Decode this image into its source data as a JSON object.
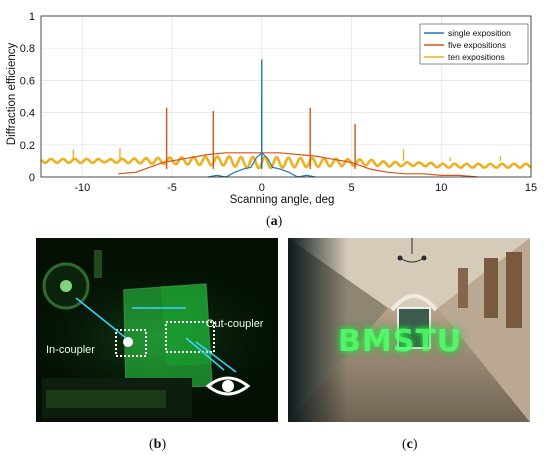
{
  "chart_data": {
    "type": "line",
    "xlabel": "Scanning angle, deg",
    "ylabel": "Diffraction efficiency",
    "xlim": [
      -12.3,
      15
    ],
    "ylim": [
      0,
      1
    ],
    "xticks": [
      "-10",
      "-5",
      "0",
      "5",
      "10",
      "15"
    ],
    "xtick_values": [
      -10,
      -5,
      0,
      5,
      10,
      15
    ],
    "yticks": [
      "0",
      "0.2",
      "0.4",
      "0.6",
      "0.8",
      "1"
    ],
    "ytick_values": [
      0,
      0.2,
      0.4,
      0.6,
      0.8,
      1
    ],
    "grid": true,
    "legend_position": "top-right",
    "series": [
      {
        "name": "single exposition",
        "color": "#1f77b4",
        "peaks": [
          {
            "x": 0,
            "y": 0.73
          }
        ],
        "x": [
          -3,
          -2.5,
          -2,
          -1.5,
          -1,
          -0.6,
          -0.3,
          0,
          0.3,
          0.6,
          1,
          1.5,
          2,
          2.5,
          3
        ],
        "y": [
          0.0,
          0.01,
          0.0,
          0.03,
          0.05,
          0.06,
          0.12,
          0.15,
          0.12,
          0.06,
          0.05,
          0.03,
          0.0,
          0.01,
          0.0
        ]
      },
      {
        "name": "five expositions",
        "color": "#d95319",
        "peaks": [
          {
            "x": -5.3,
            "y": 0.43
          },
          {
            "x": -2.7,
            "y": 0.41
          },
          {
            "x": 0,
            "y": 0.47
          },
          {
            "x": 2.7,
            "y": 0.43
          },
          {
            "x": 5.2,
            "y": 0.33
          }
        ],
        "x": [
          -8,
          -7,
          -6.5,
          -6,
          -5.5,
          -5,
          -4.5,
          -4,
          -3.5,
          -3,
          -2,
          -1,
          0,
          1,
          2,
          3,
          3.5,
          4,
          4.5,
          5,
          5.5,
          6,
          6.5,
          7,
          8,
          9,
          10,
          11,
          12
        ],
        "y": [
          0.02,
          0.03,
          0.05,
          0.07,
          0.09,
          0.1,
          0.11,
          0.12,
          0.13,
          0.14,
          0.15,
          0.15,
          0.15,
          0.15,
          0.14,
          0.13,
          0.12,
          0.11,
          0.1,
          0.09,
          0.07,
          0.05,
          0.04,
          0.03,
          0.02,
          0.02,
          0.01,
          0.01,
          0.0
        ]
      },
      {
        "name": "ten expositions",
        "color": "#edb120",
        "peaks": [
          {
            "x": -10.5,
            "y": 0.17
          },
          {
            "x": -7.9,
            "y": 0.18
          },
          {
            "x": 7.9,
            "y": 0.17
          },
          {
            "x": 10.5,
            "y": 0.12
          },
          {
            "x": 13.3,
            "y": 0.13
          }
        ],
        "x": [
          -12.3,
          -11,
          -10,
          -9,
          -8,
          -7,
          -6,
          -5,
          -4,
          -3,
          -2,
          -1,
          0,
          1,
          2,
          3,
          4,
          5,
          6,
          7,
          8,
          9,
          10,
          11,
          12,
          13,
          14,
          15
        ],
        "y": [
          0.1,
          0.1,
          0.1,
          0.1,
          0.1,
          0.1,
          0.1,
          0.1,
          0.1,
          0.1,
          0.1,
          0.09,
          0.09,
          0.09,
          0.09,
          0.09,
          0.09,
          0.09,
          0.09,
          0.08,
          0.08,
          0.08,
          0.07,
          0.07,
          0.07,
          0.07,
          0.07,
          0.07
        ]
      }
    ]
  },
  "captions": {
    "a": "a",
    "b": "b",
    "c": "c"
  },
  "photo_b": {
    "in_label": "In-coupler",
    "out_label": "Out-coupler"
  },
  "photo_c": {
    "hologram_text": "BMSTU"
  }
}
